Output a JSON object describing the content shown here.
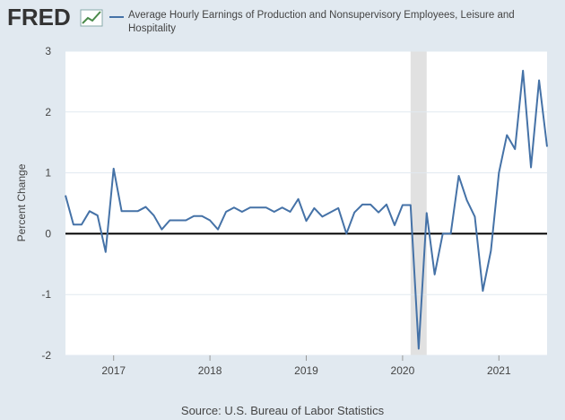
{
  "logo": "FRED",
  "chart_data": {
    "type": "line",
    "y_label": "Percent Change",
    "source": "Source: U.S. Bureau of Labor Statistics",
    "x": [
      2016.5,
      2016.583,
      2016.667,
      2016.75,
      2016.833,
      2016.917,
      2017,
      2017.083,
      2017.167,
      2017.25,
      2017.333,
      2017.417,
      2017.5,
      2017.583,
      2017.667,
      2017.75,
      2017.833,
      2017.917,
      2018,
      2018.083,
      2018.167,
      2018.25,
      2018.333,
      2018.417,
      2018.5,
      2018.583,
      2018.667,
      2018.75,
      2018.833,
      2018.917,
      2019,
      2019.083,
      2019.167,
      2019.25,
      2019.333,
      2019.417,
      2019.5,
      2019.583,
      2019.667,
      2019.75,
      2019.833,
      2019.917,
      2020,
      2020.083,
      2020.167,
      2020.25,
      2020.333,
      2020.417,
      2020.5,
      2020.583,
      2020.667,
      2020.75,
      2020.833,
      2020.917,
      2021,
      2021.083,
      2021.167,
      2021.25,
      2021.333,
      2021.417,
      2021.5
    ],
    "series": [
      {
        "name": "Average Hourly Earnings of Production and Nonsupervisory Employees, Leisure and Hospitality",
        "color": "#4572a7",
        "values": [
          0.63,
          0.15,
          0.15,
          0.37,
          0.3,
          -0.3,
          1.07,
          0.37,
          0.37,
          0.37,
          0.44,
          0.3,
          0.07,
          0.22,
          0.22,
          0.22,
          0.29,
          0.29,
          0.22,
          0.07,
          0.36,
          0.43,
          0.36,
          0.43,
          0.43,
          0.43,
          0.36,
          0.43,
          0.36,
          0.57,
          0.21,
          0.42,
          0.28,
          0.35,
          0.42,
          0.0,
          0.35,
          0.48,
          0.48,
          0.35,
          0.48,
          0.14,
          0.47,
          0.47,
          -1.89,
          0.34,
          -0.67,
          0.0,
          0.0,
          0.95,
          0.55,
          0.28,
          -0.94,
          -0.28,
          1.0,
          1.62,
          1.39,
          2.68,
          1.09,
          2.52,
          1.43
        ]
      }
    ],
    "xlim": [
      2016.5,
      2021.5
    ],
    "xticks": [
      2017,
      2018,
      2019,
      2020,
      2021
    ],
    "ylim": [
      -2,
      3
    ],
    "yticks": [
      -2,
      -1,
      0,
      1,
      2,
      3
    ],
    "grid": true,
    "zero_line": true,
    "recession": [
      2020.083,
      2020.25
    ],
    "recession_color": "#e1e1e1"
  }
}
